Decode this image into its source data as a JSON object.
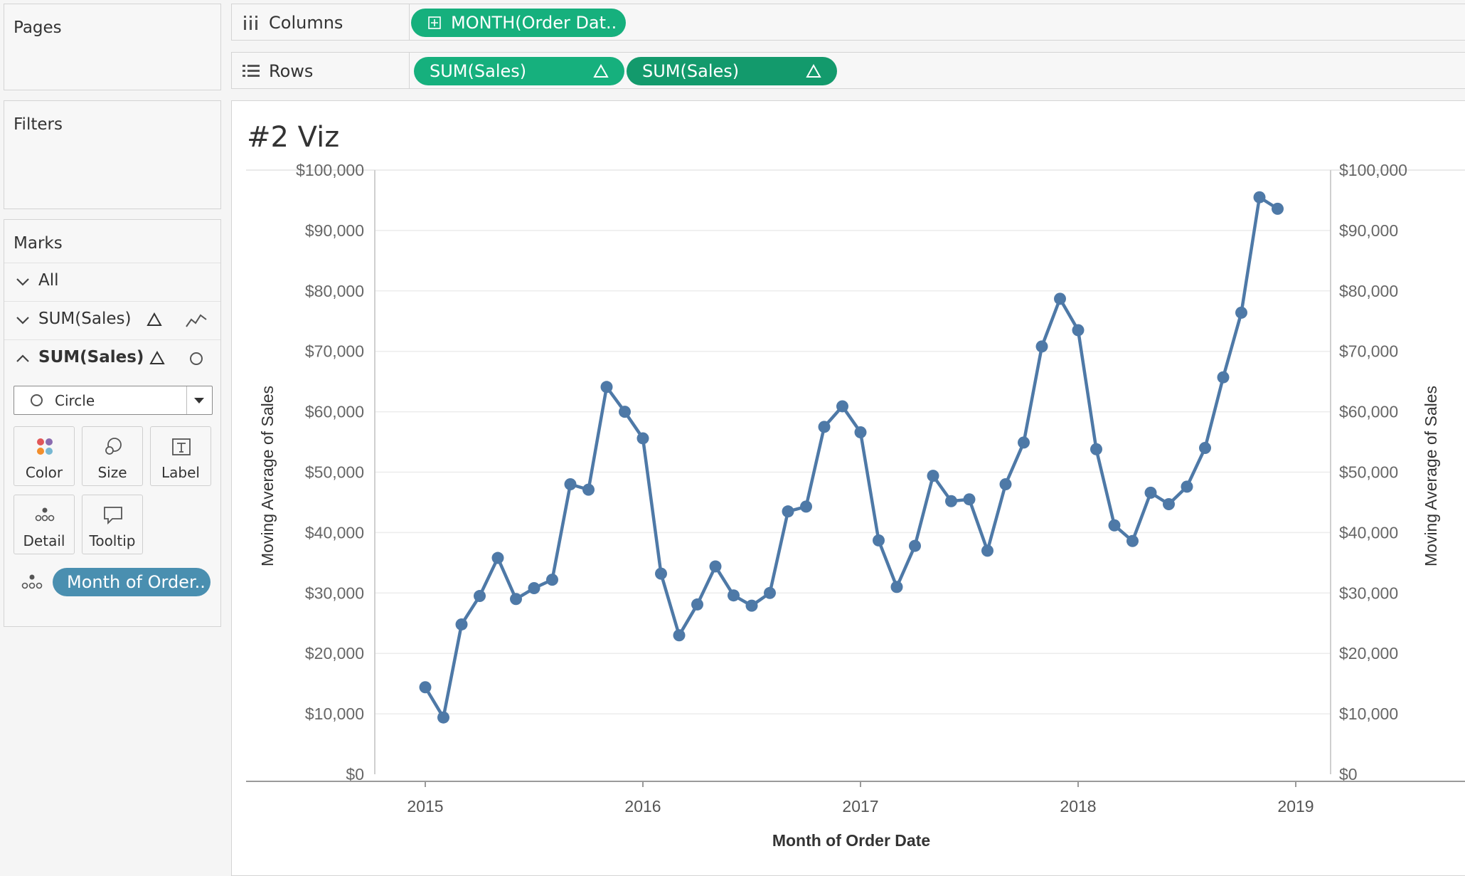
{
  "panels": {
    "pages_title": "Pages",
    "filters_title": "Filters",
    "marks_title": "Marks"
  },
  "marks": {
    "all_label": "All",
    "layer1_label": "SUM(Sales)",
    "layer2_label": "SUM(Sales)",
    "mark_type": "Circle",
    "buttons": {
      "color": "Color",
      "size": "Size",
      "label": "Label",
      "detail": "Detail",
      "tooltip": "Tooltip"
    },
    "detail_pill": "Month of Order.."
  },
  "shelves": {
    "columns_label": "Columns",
    "columns_pill": "MONTH(Order Dat..",
    "rows_label": "Rows",
    "rows_pill1": "SUM(Sales)",
    "rows_pill2": "SUM(Sales)"
  },
  "colors": {
    "pill_green": "#16b07d",
    "pill_green_dark": "#139a6c",
    "line": "#4e79a7",
    "detail_pill": "#4a8fb0"
  },
  "viz": {
    "title": "#2 Viz"
  },
  "chart_data": {
    "type": "line",
    "xlabel": "Month of Order Date",
    "ylabel_left": "Moving Average of Sales",
    "ylabel_right": "Moving Average of Sales",
    "ylim": [
      0,
      100000
    ],
    "y_ticks": [
      "$0",
      "$10,000",
      "$20,000",
      "$30,000",
      "$40,000",
      "$50,000",
      "$60,000",
      "$70,000",
      "$80,000",
      "$90,000",
      "$100,000"
    ],
    "x_ticks": [
      "2015",
      "2016",
      "2017",
      "2018",
      "2019"
    ],
    "markers": "circle",
    "grid": "horizontal",
    "series": [
      {
        "x": [
          "2015-01",
          "2015-02",
          "2015-03",
          "2015-04",
          "2015-05",
          "2015-06",
          "2015-07",
          "2015-08",
          "2015-09",
          "2015-10",
          "2015-11",
          "2015-12",
          "2016-01",
          "2016-02",
          "2016-03",
          "2016-04",
          "2016-05",
          "2016-06",
          "2016-07",
          "2016-08",
          "2016-09",
          "2016-10",
          "2016-11",
          "2016-12",
          "2017-01",
          "2017-02",
          "2017-03",
          "2017-04",
          "2017-05",
          "2017-06",
          "2017-07",
          "2017-08",
          "2017-09",
          "2017-10",
          "2017-11",
          "2017-12",
          "2018-01",
          "2018-02",
          "2018-03",
          "2018-04",
          "2018-05",
          "2018-06",
          "2018-07",
          "2018-08",
          "2018-09",
          "2018-10",
          "2018-11",
          "2018-12"
        ],
        "values": [
          14400,
          9400,
          24800,
          29500,
          35800,
          29000,
          30800,
          32200,
          48000,
          47100,
          64100,
          60000,
          55600,
          33200,
          23000,
          28100,
          34400,
          29600,
          27900,
          30000,
          43500,
          44300,
          57500,
          60900,
          56600,
          38700,
          31000,
          37800,
          49400,
          45200,
          45500,
          37000,
          48000,
          54900,
          70800,
          78700,
          73500,
          53800,
          41200,
          38600,
          46600,
          44700,
          47600,
          54000,
          65700,
          76400,
          95500,
          93600
        ]
      }
    ]
  }
}
